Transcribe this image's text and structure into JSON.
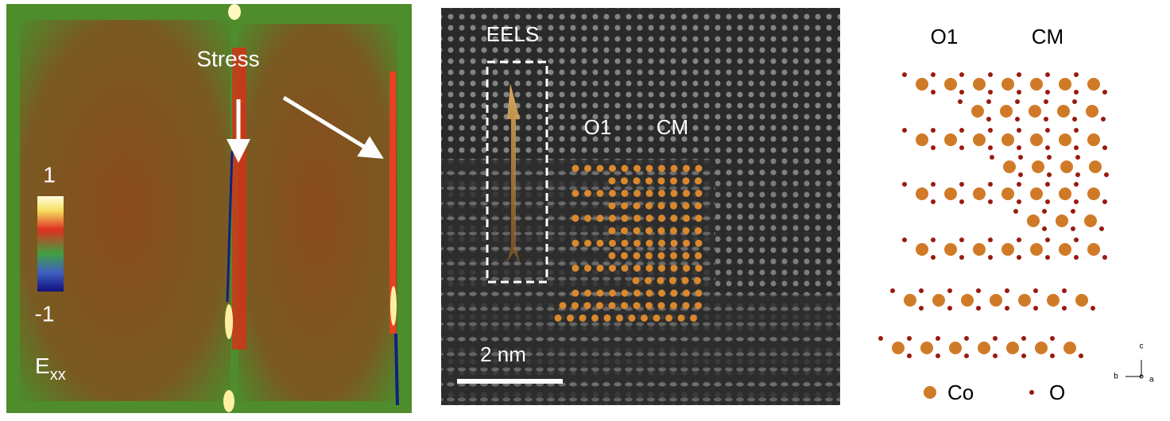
{
  "panels": [
    {
      "arrow_label": "Stress",
      "colorbar": {
        "max": "1",
        "min": "-1",
        "label": "E",
        "label_sub": "xx"
      }
    },
    {
      "region_label": "EELS",
      "phase_labels": [
        "O1",
        "CM"
      ],
      "scale_bar": "2 nm"
    },
    {
      "phase_labels": [
        "O1",
        "CM"
      ],
      "legend": [
        "Co",
        "O"
      ],
      "axes": [
        "c",
        "b",
        "a"
      ]
    }
  ]
}
